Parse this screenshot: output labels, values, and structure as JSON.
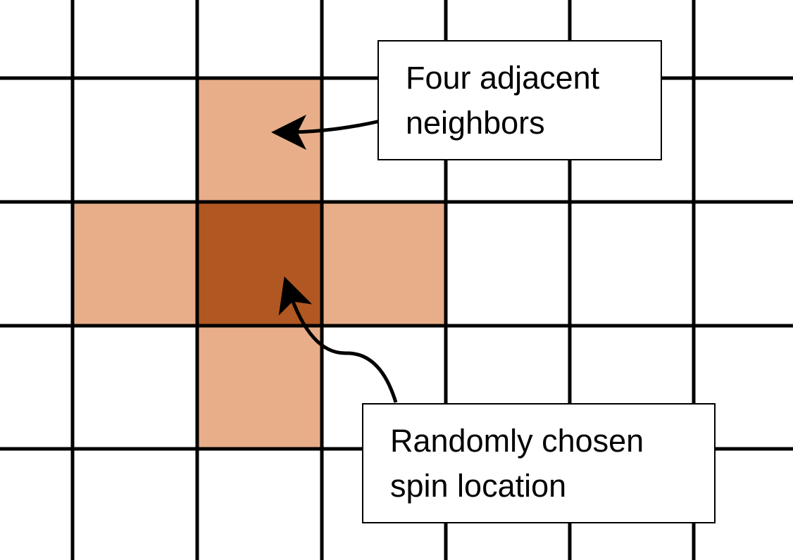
{
  "colors": {
    "background": "#ffffff",
    "grid_line": "#000000",
    "selected_cell": "#b15721",
    "neighbor_cell": "#e8ae8a",
    "callout_border": "#000000",
    "callout_fill": "#ffffff",
    "arrow": "#000000"
  },
  "lattice": {
    "selected_cell": {
      "col": 2,
      "row": 2
    },
    "neighbor_cells": [
      {
        "col": 2,
        "row": 1
      },
      {
        "col": 1,
        "row": 2
      },
      {
        "col": 3,
        "row": 2
      },
      {
        "col": 2,
        "row": 3
      }
    ]
  },
  "callouts": {
    "neighbors": {
      "line1": "Four adjacent",
      "line2": "neighbors"
    },
    "spin": {
      "line1": "Randomly chosen",
      "line2": "spin location"
    }
  }
}
